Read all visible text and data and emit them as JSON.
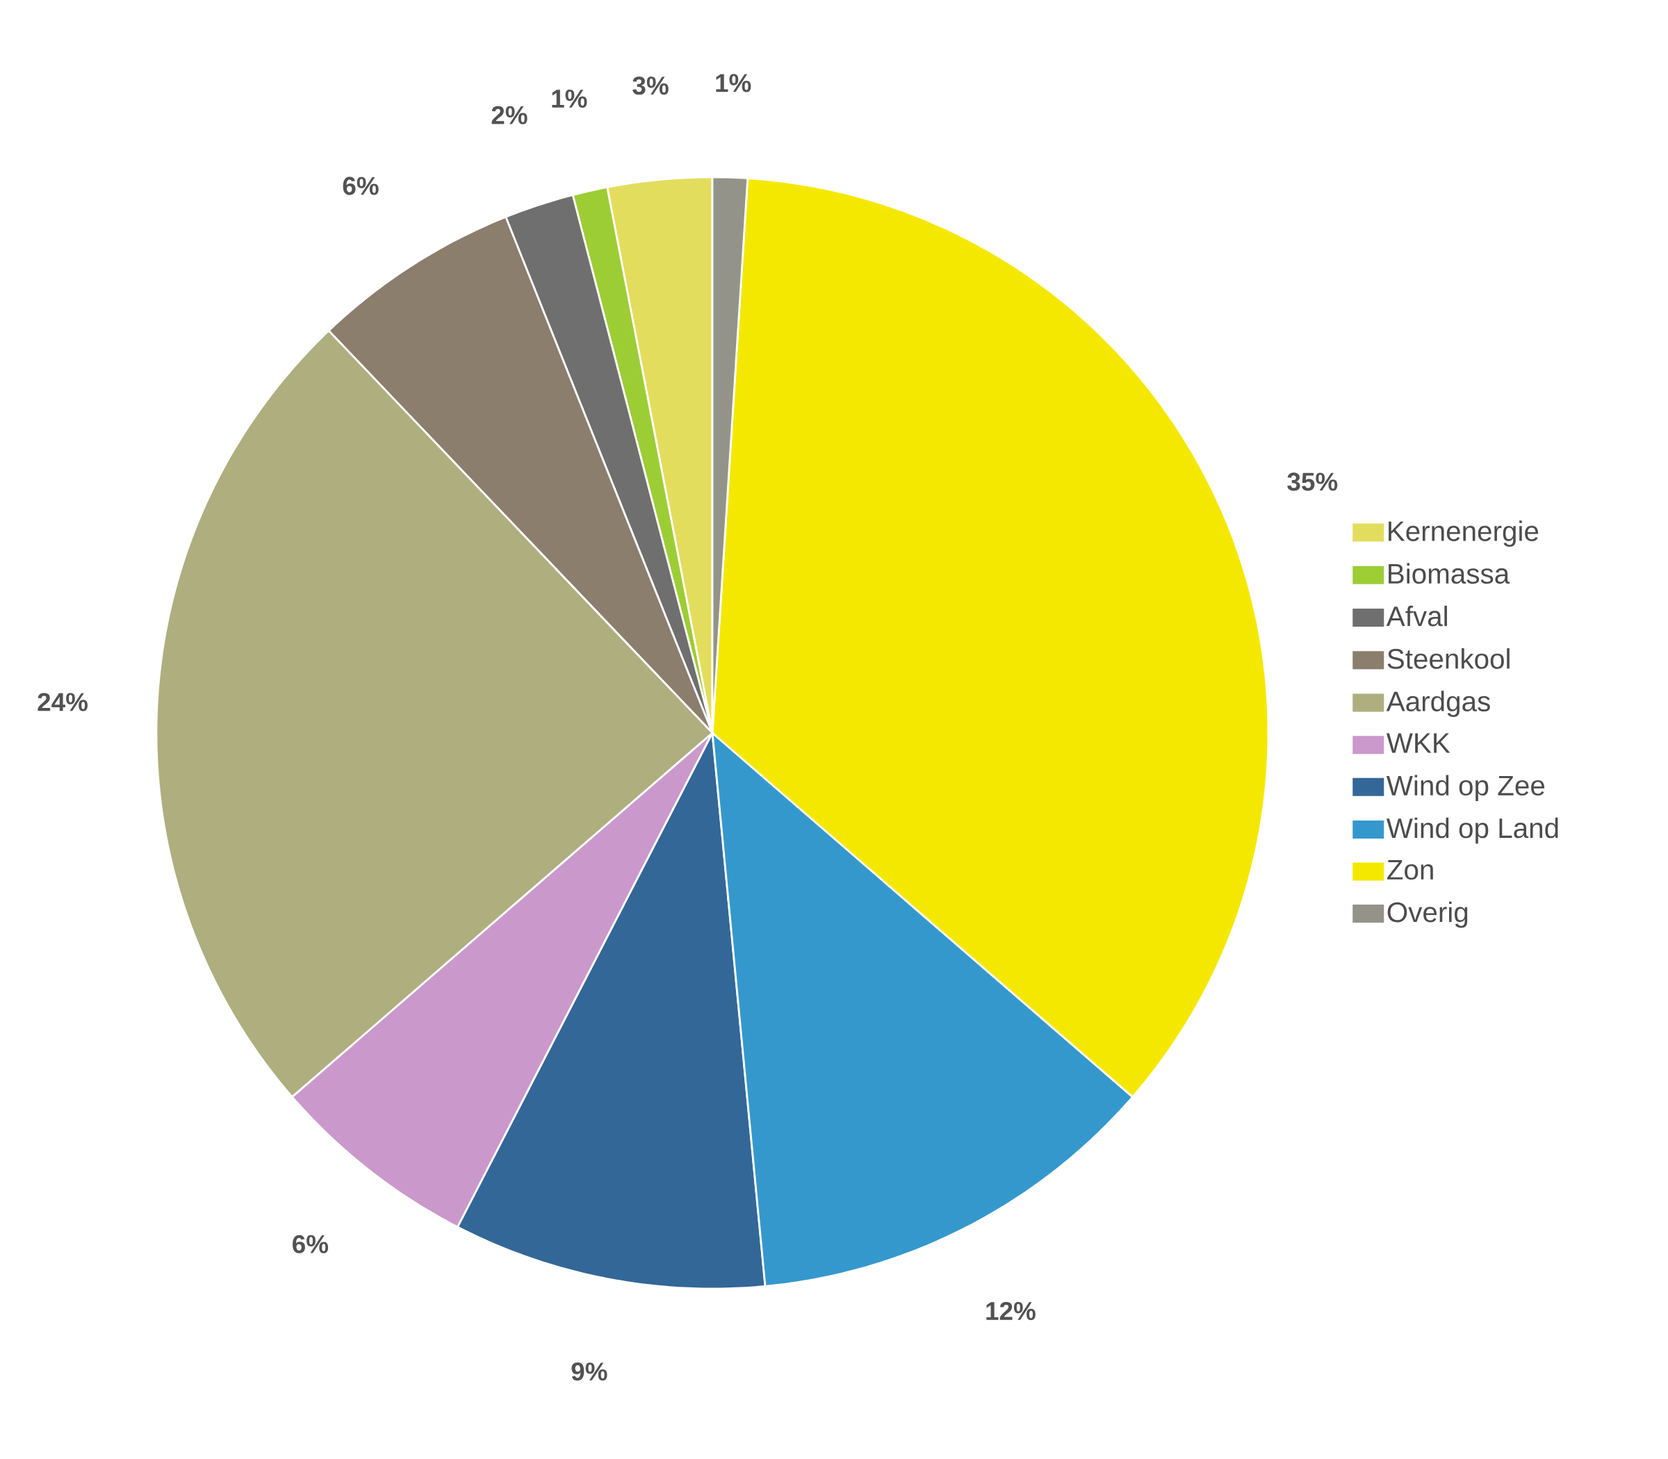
{
  "chart_data": {
    "type": "pie",
    "categories": [
      "Kernenergie",
      "Biomassa",
      "Afval",
      "Steenkool",
      "Aardgas",
      "WKK",
      "Wind op Zee",
      "Wind op Land",
      "Zon",
      "Overig"
    ],
    "values": [
      3,
      1,
      2,
      6,
      24,
      6,
      9,
      12,
      35,
      1
    ],
    "value_labels": [
      "3%",
      "1%",
      "2%",
      "6%",
      "24%",
      "6%",
      "9%",
      "12%",
      "35%",
      "1%"
    ],
    "colors": [
      "#e3dd5e",
      "#9dcd35",
      "#6f6f6f",
      "#8b7e6d",
      "#afae7f",
      "#cb98cb",
      "#336797",
      "#3598cc",
      "#f5e800",
      "#939389"
    ],
    "legend": "right"
  }
}
